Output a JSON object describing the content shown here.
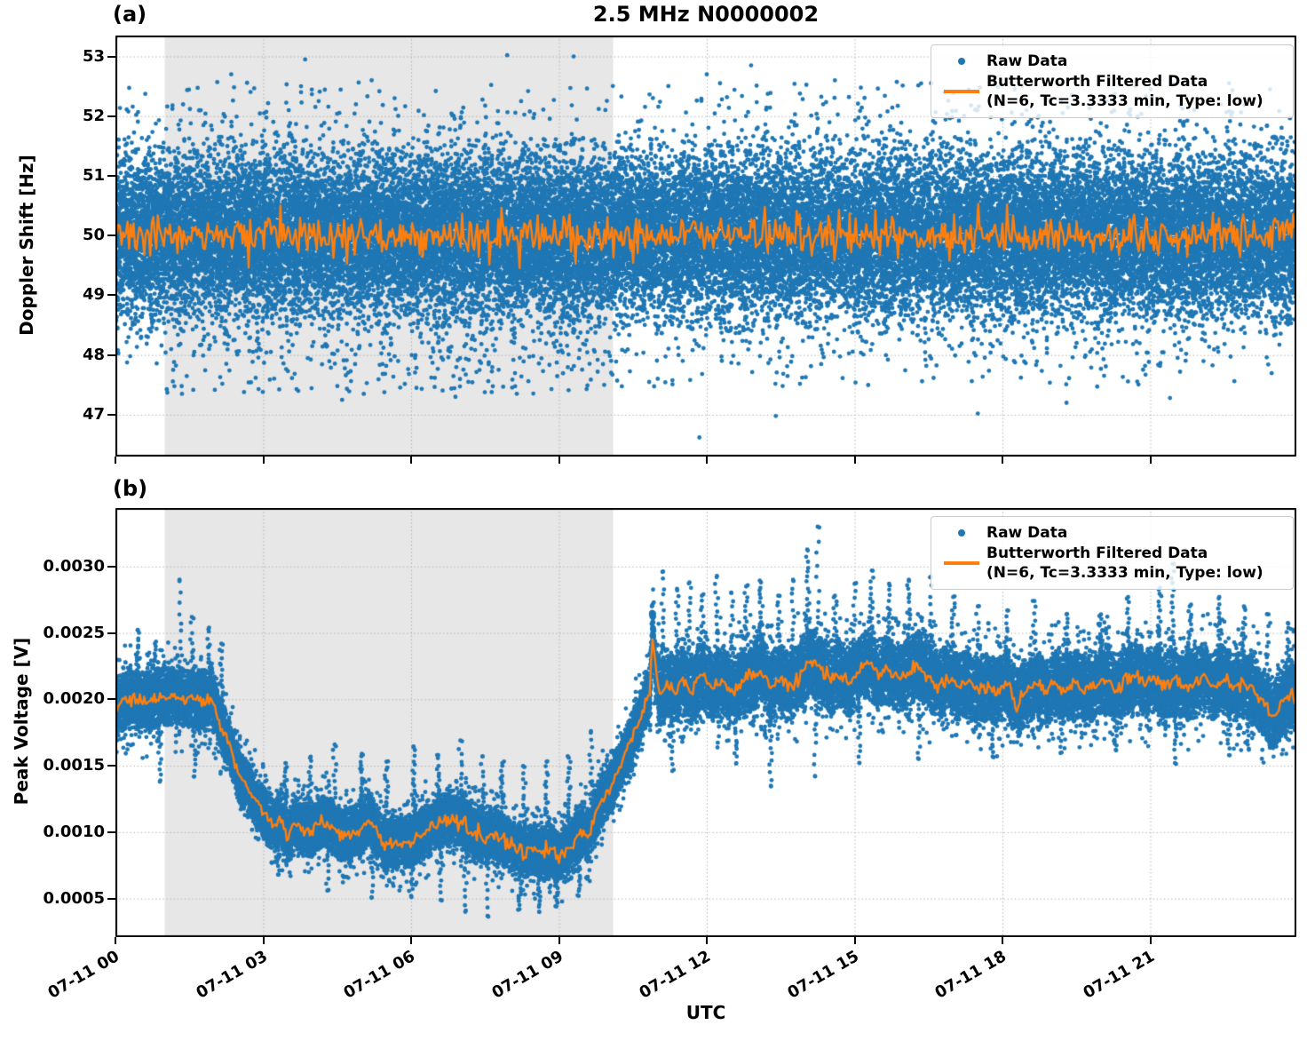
{
  "title": "2.5 MHz N0000002",
  "xlabel": "UTC",
  "legend": {
    "raw_label": "Raw Data",
    "filtered_label": "Butterworth Filtered Data",
    "filtered_sublabel": "(N=6, Tc=3.3333 min, Type: low)"
  },
  "colors": {
    "raw": "#1f77b4",
    "filtered": "#ff7f0e",
    "shade": "#e7e7e7",
    "grid": "#b3b3b3",
    "axis": "#000000"
  },
  "chart_data": [
    {
      "id": "doppler",
      "type": "scatter",
      "panel_label": "(a)",
      "ylabel": "Doppler Shift [Hz]",
      "ylim": [
        46.3,
        53.35
      ],
      "ytick_values": [
        47,
        48,
        49,
        50,
        51,
        52,
        53
      ],
      "ytick_labels": [
        "47",
        "48",
        "49",
        "50",
        "51",
        "52",
        "53"
      ],
      "x_hours_range": [
        0,
        23.96
      ],
      "xtick_hours": [
        0,
        3,
        6,
        9,
        12,
        15,
        18,
        21
      ],
      "xtick_labels": [
        "07-11 00",
        "07-11 03",
        "07-11 06",
        "07-11 09",
        "07-11 12",
        "07-11 15",
        "07-11 18",
        "07-11 21"
      ],
      "shaded_hours": [
        1.0,
        10.1
      ],
      "raw_scatter": {
        "mean_hz": 50.0,
        "dense_band_hz": [
          48.6,
          51.4
        ],
        "speckle_band_hz": [
          47.5,
          52.55
        ],
        "observed_max_hz": 53.05,
        "observed_min_hz": 46.62,
        "groups": [
          {
            "n": 30000,
            "sigma": 0.62,
            "clip": 1.65,
            "seed": 20
          },
          {
            "n": 6500,
            "sigma": 0.95,
            "clip": 2.2,
            "seed": 21
          },
          {
            "n": 950,
            "sigma": 1.3,
            "clip": 2.55,
            "seed": 22
          }
        ],
        "sparse_high": {
          "n": 130,
          "v_range": [
            51.95,
            52.58
          ],
          "seed": 23
        },
        "shaded_low_boost": {
          "n": 170,
          "t_range": [
            1.0,
            10.1
          ],
          "v_range": [
            47.35,
            48.25
          ],
          "seed": 24
        },
        "post_shade_low": {
          "n": 55,
          "t_range": [
            10.1,
            23.96
          ],
          "v_range": [
            47.45,
            48.1
          ],
          "seed": 25
        },
        "extreme_points": [
          [
            2.35,
            52.7
          ],
          [
            3.85,
            52.95
          ],
          [
            5.2,
            52.6
          ],
          [
            7.95,
            53.02
          ],
          [
            9.3,
            53.0
          ],
          [
            12.0,
            52.7
          ],
          [
            12.9,
            52.85
          ],
          [
            14.6,
            52.6
          ],
          [
            16.35,
            52.55
          ],
          [
            18.25,
            52.45
          ],
          [
            20.7,
            52.5
          ],
          [
            22.6,
            52.55
          ],
          [
            1.35,
            47.35
          ],
          [
            4.6,
            47.25
          ],
          [
            6.9,
            47.3
          ],
          [
            11.85,
            46.62
          ],
          [
            13.4,
            46.98
          ],
          [
            17.5,
            47.02
          ],
          [
            19.3,
            47.2
          ],
          [
            21.4,
            47.28
          ]
        ]
      },
      "filtered_line": {
        "mean_hz": 50.0,
        "jitter_sigma_hz": 0.165,
        "spike_prob": 0.02,
        "spike_amp_hz": [
          0.2,
          0.55
        ],
        "samples": 780,
        "seed": 9
      }
    },
    {
      "id": "voltage",
      "type": "scatter",
      "panel_label": "(b)",
      "ylabel": "Peak Voltage [V]",
      "ylim": [
        0.00021,
        0.00344
      ],
      "ytick_values": [
        0.0005,
        0.001,
        0.0015,
        0.002,
        0.0025,
        0.003
      ],
      "ytick_labels": [
        "0.0005",
        "0.0010",
        "0.0015",
        "0.0020",
        "0.0025",
        "0.0030"
      ],
      "x_hours_range": [
        0,
        23.96
      ],
      "xtick_hours": [
        0,
        3,
        6,
        9,
        12,
        15,
        18,
        21
      ],
      "xtick_labels": [
        "07-11 00",
        "07-11 03",
        "07-11 06",
        "07-11 09",
        "07-11 12",
        "07-11 15",
        "07-11 18",
        "07-11 21"
      ],
      "shaded_hours": [
        1.0,
        10.1
      ],
      "filtered_line": {
        "jitter_sigma_v": 2.6e-05,
        "samples": 820,
        "seed": 13,
        "breakpoints": [
          [
            0.0,
            0.00196
          ],
          [
            0.3,
            0.002
          ],
          [
            0.6,
            0.00198
          ],
          [
            0.9,
            0.00202
          ],
          [
            1.2,
            0.00203
          ],
          [
            1.5,
            0.002
          ],
          [
            1.8,
            0.00198
          ],
          [
            1.95,
            0.00201
          ],
          [
            2.05,
            0.0019
          ],
          [
            2.2,
            0.00175
          ],
          [
            2.35,
            0.00162
          ],
          [
            2.5,
            0.00142
          ],
          [
            2.62,
            0.00138
          ],
          [
            2.75,
            0.0013
          ],
          [
            2.9,
            0.0012
          ],
          [
            3.05,
            0.00112
          ],
          [
            3.2,
            0.00104
          ],
          [
            3.35,
            0.0011
          ],
          [
            3.5,
            0.00096
          ],
          [
            3.65,
            0.00108
          ],
          [
            3.8,
            0.00102
          ],
          [
            4.0,
            0.00101
          ],
          [
            4.2,
            0.00109
          ],
          [
            4.4,
            0.00104
          ],
          [
            4.6,
            0.00097
          ],
          [
            4.8,
            0.001
          ],
          [
            5.0,
            0.00103
          ],
          [
            5.15,
            0.00111
          ],
          [
            5.3,
            0.00101
          ],
          [
            5.45,
            0.00089
          ],
          [
            5.6,
            0.00092
          ],
          [
            5.8,
            0.00091
          ],
          [
            6.0,
            0.00094
          ],
          [
            6.2,
            0.00098
          ],
          [
            6.4,
            0.00103
          ],
          [
            6.6,
            0.00108
          ],
          [
            6.8,
            0.00112
          ],
          [
            6.95,
            0.0011
          ],
          [
            7.1,
            0.00106
          ],
          [
            7.3,
            0.00099
          ],
          [
            7.5,
            0.00095
          ],
          [
            7.7,
            0.00098
          ],
          [
            7.9,
            0.00093
          ],
          [
            8.1,
            0.00089
          ],
          [
            8.3,
            0.00085
          ],
          [
            8.5,
            0.00088
          ],
          [
            8.7,
            0.00083
          ],
          [
            8.85,
            0.00087
          ],
          [
            9.0,
            0.00081
          ],
          [
            9.15,
            0.00085
          ],
          [
            9.3,
            0.00094
          ],
          [
            9.45,
            0.00101
          ],
          [
            9.6,
            0.00097
          ],
          [
            9.75,
            0.00116
          ],
          [
            9.9,
            0.00125
          ],
          [
            10.05,
            0.00133
          ],
          [
            10.2,
            0.00147
          ],
          [
            10.35,
            0.00158
          ],
          [
            10.5,
            0.00172
          ],
          [
            10.65,
            0.00187
          ],
          [
            10.78,
            0.002
          ],
          [
            10.85,
            0.00207
          ],
          [
            10.9,
            0.00252
          ],
          [
            10.97,
            0.00218
          ],
          [
            11.05,
            0.00203
          ],
          [
            11.2,
            0.00213
          ],
          [
            11.35,
            0.00206
          ],
          [
            11.5,
            0.00214
          ],
          [
            11.7,
            0.00205
          ],
          [
            11.9,
            0.0022
          ],
          [
            12.1,
            0.00208
          ],
          [
            12.3,
            0.00215
          ],
          [
            12.5,
            0.00206
          ],
          [
            12.7,
            0.00212
          ],
          [
            12.9,
            0.00216
          ],
          [
            13.1,
            0.00222
          ],
          [
            13.3,
            0.0021
          ],
          [
            13.5,
            0.00215
          ],
          [
            13.7,
            0.0021
          ],
          [
            13.9,
            0.00218
          ],
          [
            14.1,
            0.0023
          ],
          [
            14.3,
            0.00222
          ],
          [
            14.5,
            0.00213
          ],
          [
            14.7,
            0.00219
          ],
          [
            14.9,
            0.00212
          ],
          [
            15.1,
            0.00222
          ],
          [
            15.3,
            0.00228
          ],
          [
            15.5,
            0.00216
          ],
          [
            15.7,
            0.00222
          ],
          [
            15.9,
            0.00214
          ],
          [
            16.1,
            0.00221
          ],
          [
            16.3,
            0.00226
          ],
          [
            16.5,
            0.00217
          ],
          [
            16.7,
            0.00211
          ],
          [
            16.9,
            0.00216
          ],
          [
            17.1,
            0.00209
          ],
          [
            17.3,
            0.00213
          ],
          [
            17.5,
            0.00206
          ],
          [
            17.7,
            0.0021
          ],
          [
            17.9,
            0.00205
          ],
          [
            18.1,
            0.00212
          ],
          [
            18.3,
            0.00195
          ],
          [
            18.5,
            0.00208
          ],
          [
            18.7,
            0.00211
          ],
          [
            18.9,
            0.00206
          ],
          [
            19.1,
            0.00212
          ],
          [
            19.3,
            0.00207
          ],
          [
            19.5,
            0.00213
          ],
          [
            19.7,
            0.00206
          ],
          [
            19.9,
            0.00211
          ],
          [
            20.1,
            0.00215
          ],
          [
            20.3,
            0.00208
          ],
          [
            20.5,
            0.00214
          ],
          [
            20.7,
            0.0022
          ],
          [
            20.9,
            0.00212
          ],
          [
            21.1,
            0.00217
          ],
          [
            21.3,
            0.0021
          ],
          [
            21.5,
            0.00214
          ],
          [
            21.7,
            0.00208
          ],
          [
            21.9,
            0.00213
          ],
          [
            22.1,
            0.00218
          ],
          [
            22.3,
            0.0021
          ],
          [
            22.5,
            0.00215
          ],
          [
            22.7,
            0.00208
          ],
          [
            22.9,
            0.00212
          ],
          [
            23.1,
            0.00206
          ],
          [
            23.3,
            0.00198
          ],
          [
            23.5,
            0.00186
          ],
          [
            23.65,
            0.00196
          ],
          [
            23.8,
            0.00205
          ],
          [
            23.96,
            0.00202
          ]
        ]
      },
      "raw_scatter": {
        "observed_max_v": 0.0033,
        "observed_min_v": 0.00036,
        "groups": [
          {
            "n": 26000,
            "sigma": 0.00011,
            "clip_mult": 1.8,
            "seed": 31
          },
          {
            "n": 6200,
            "sigma": 0.000165,
            "clip_mult": 2.3,
            "seed": 32
          }
        ],
        "widen_after_hour": 11.0,
        "widen_factor": 1.3,
        "widen_before_hour": 2.0,
        "widen_before_factor": 1.12,
        "spike_seed": 33,
        "spikes_up": [
          [
            0.45,
            0.00252
          ],
          [
            0.8,
            0.00242
          ],
          [
            1.3,
            0.00289
          ],
          [
            1.55,
            0.00262
          ],
          [
            1.9,
            0.00254
          ],
          [
            2.15,
            0.00242
          ],
          [
            3.45,
            0.00152
          ],
          [
            3.95,
            0.00156
          ],
          [
            4.45,
            0.00166
          ],
          [
            5.0,
            0.00159
          ],
          [
            5.5,
            0.00153
          ],
          [
            6.05,
            0.00164
          ],
          [
            6.55,
            0.00158
          ],
          [
            7.0,
            0.00169
          ],
          [
            7.45,
            0.00157
          ],
          [
            7.85,
            0.00152
          ],
          [
            8.3,
            0.00149
          ],
          [
            8.75,
            0.00153
          ],
          [
            9.2,
            0.00156
          ],
          [
            9.65,
            0.00176
          ],
          [
            10.9,
            0.00262
          ],
          [
            11.1,
            0.00296
          ],
          [
            11.4,
            0.00282
          ],
          [
            11.65,
            0.00288
          ],
          [
            11.9,
            0.00278
          ],
          [
            12.2,
            0.00292
          ],
          [
            12.5,
            0.0028
          ],
          [
            12.8,
            0.00285
          ],
          [
            13.1,
            0.00288
          ],
          [
            13.45,
            0.00278
          ],
          [
            13.75,
            0.0029
          ],
          [
            14.05,
            0.00312
          ],
          [
            14.25,
            0.0033
          ],
          [
            14.6,
            0.00278
          ],
          [
            15.0,
            0.00287
          ],
          [
            15.35,
            0.00297
          ],
          [
            15.7,
            0.00287
          ],
          [
            16.1,
            0.0029
          ],
          [
            16.55,
            0.00292
          ],
          [
            17.0,
            0.00277
          ],
          [
            17.5,
            0.0027
          ],
          [
            18.1,
            0.00267
          ],
          [
            18.65,
            0.00274
          ],
          [
            19.3,
            0.00264
          ],
          [
            20.0,
            0.00264
          ],
          [
            20.55,
            0.00277
          ],
          [
            21.2,
            0.00284
          ],
          [
            21.45,
            0.00302
          ],
          [
            21.8,
            0.0027
          ],
          [
            22.4,
            0.00277
          ],
          [
            22.9,
            0.0027
          ],
          [
            23.4,
            0.00264
          ],
          [
            23.8,
            0.00257
          ]
        ],
        "spikes_down": [
          [
            0.9,
            0.00138
          ],
          [
            1.6,
            0.00142
          ],
          [
            2.6,
            0.00118
          ],
          [
            3.3,
            0.00068
          ],
          [
            4.3,
            0.00056
          ],
          [
            5.2,
            0.00051
          ],
          [
            6.0,
            0.00052
          ],
          [
            6.6,
            0.00049
          ],
          [
            7.1,
            0.0004
          ],
          [
            7.55,
            0.00037
          ],
          [
            8.2,
            0.00042
          ],
          [
            8.6,
            0.0004
          ],
          [
            8.95,
            0.00044
          ],
          [
            9.4,
            0.00052
          ],
          [
            11.3,
            0.00146
          ],
          [
            12.6,
            0.00152
          ],
          [
            13.3,
            0.00135
          ],
          [
            14.2,
            0.00142
          ],
          [
            15.1,
            0.00152
          ],
          [
            16.3,
            0.00155
          ],
          [
            17.8,
            0.00157
          ],
          [
            19.2,
            0.0016
          ],
          [
            20.3,
            0.00162
          ],
          [
            21.5,
            0.00152
          ],
          [
            22.6,
            0.00158
          ],
          [
            23.0,
            0.00162
          ]
        ]
      }
    }
  ]
}
